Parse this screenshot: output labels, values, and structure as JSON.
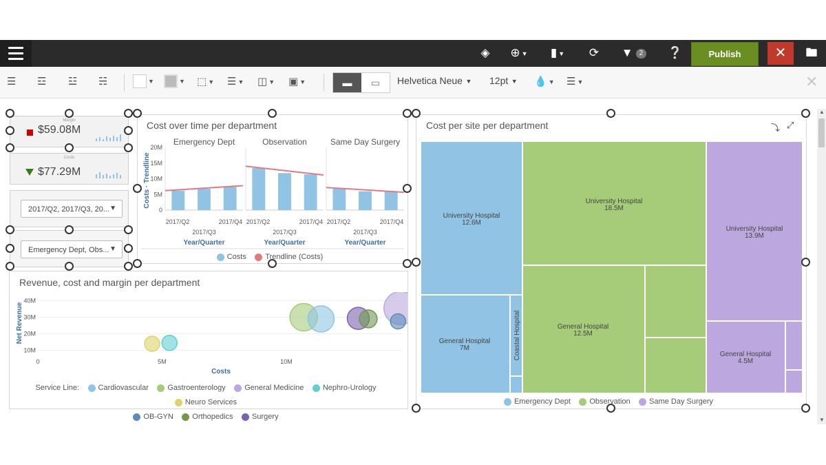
{
  "topbar": {
    "publish_label": "Publish",
    "close_label": "✕",
    "filter_count": "2"
  },
  "toolbar": {
    "font": "Helvetica Neue",
    "size": "12pt"
  },
  "kpis": [
    {
      "label": "Margin",
      "value": "$59.08M",
      "indicator_color": "#cc0000"
    },
    {
      "label": "Costs",
      "value": "$77.29M",
      "indicator_color": "#3a7a1a"
    }
  ],
  "filters": [
    {
      "value": "2017/Q2, 2017/Q3, 20..."
    },
    {
      "value": "Emergency Dept, Obs..."
    }
  ],
  "cost_over_time": {
    "title": "Cost over time per department",
    "ylabel": "Costs · Trendline",
    "xlabel": "Year/Quarter",
    "legend": [
      "Costs",
      "Trendline (Costs)"
    ],
    "chart_data": {
      "type": "bar",
      "categories": [
        "2017/Q2",
        "2017/Q3",
        "2017/Q4"
      ],
      "ylim": [
        0,
        20
      ],
      "yticks": [
        "20M",
        "15M",
        "10M",
        "5M",
        "0"
      ],
      "facets": [
        {
          "name": "Emergency Dept",
          "values": [
            6.2,
            6.8,
            7.4
          ],
          "trend": [
            6.2,
            7.8
          ]
        },
        {
          "name": "Observation",
          "values": [
            13.4,
            11.8,
            11.4
          ],
          "trend": [
            14.0,
            11.2
          ]
        },
        {
          "name": "Same Day Surgery",
          "values": [
            6.8,
            6.0,
            5.9
          ],
          "trend": [
            7.2,
            5.7
          ]
        }
      ],
      "colors": {
        "bar": "#90c3e4",
        "trend": "#e07b83"
      }
    }
  },
  "revenue_cost_margin": {
    "title": "Revenue, cost and margin per department",
    "xlabel": "Costs",
    "ylabel": "Net Revenue",
    "legend_title": "Service Line:",
    "legend": [
      {
        "name": "Cardiovascular",
        "color": "#8fc4e6"
      },
      {
        "name": "Gastroenterology",
        "color": "#a6cc7a"
      },
      {
        "name": "General Medicine",
        "color": "#bca8de"
      },
      {
        "name": "Nephro-Urology",
        "color": "#5fd0cf"
      },
      {
        "name": "Neuro Services",
        "color": "#dcd36a"
      },
      {
        "name": "OB-GYN",
        "color": "#5b8db8"
      },
      {
        "name": "Orthopedics",
        "color": "#6f9a4e"
      },
      {
        "name": "Surgery",
        "color": "#7d62b0"
      }
    ],
    "chart_data": {
      "type": "scatter",
      "xlim": [
        0,
        14
      ],
      "ylim": [
        9,
        41
      ],
      "xticks": [
        {
          "v": 0,
          "label": "0"
        },
        {
          "v": 5,
          "label": "5M"
        },
        {
          "v": 10,
          "label": "10M"
        }
      ],
      "yticks": [
        {
          "v": 10,
          "label": "10M"
        },
        {
          "v": 20,
          "label": "20M"
        },
        {
          "v": 30,
          "label": "30M"
        },
        {
          "v": 40,
          "label": "40M"
        }
      ],
      "points": [
        {
          "x": 4.6,
          "y": 14.0,
          "r": 11,
          "color": "#dcd36a"
        },
        {
          "x": 5.3,
          "y": 14.5,
          "r": 11,
          "color": "#5fd0cf"
        },
        {
          "x": 10.7,
          "y": 30.0,
          "r": 20,
          "color": "#a6cc7a"
        },
        {
          "x": 11.4,
          "y": 29.0,
          "r": 19,
          "color": "#8fc4e6"
        },
        {
          "x": 12.9,
          "y": 29.3,
          "r": 16,
          "color": "#7d62b0"
        },
        {
          "x": 13.3,
          "y": 29.0,
          "r": 13,
          "color": "#6f9a4e"
        },
        {
          "x": 14.6,
          "y": 35.5,
          "r": 24,
          "color": "#bca8de"
        },
        {
          "x": 14.5,
          "y": 27.5,
          "r": 11,
          "color": "#5b8db8"
        }
      ]
    }
  },
  "cost_per_site": {
    "title": "Cost per site per department",
    "legend": [
      {
        "name": "Emergency Dept",
        "color": "#8fc4e6"
      },
      {
        "name": "Observation",
        "color": "#a6cc7a"
      },
      {
        "name": "Same Day Surgery",
        "color": "#bca8de"
      }
    ],
    "chart_data": {
      "type": "treemap",
      "groups": [
        {
          "department": "Emergency Dept",
          "sites": [
            {
              "name": "University Hospital",
              "value": "12.6M"
            },
            {
              "name": "General Hospital",
              "value": "7M"
            },
            {
              "name": "Coastal Hospital",
              "value": ""
            }
          ]
        },
        {
          "department": "Observation",
          "sites": [
            {
              "name": "University Hospital",
              "value": "18.5M"
            },
            {
              "name": "General Hospital",
              "value": "12.5M"
            }
          ]
        },
        {
          "department": "Same Day Surgery",
          "sites": [
            {
              "name": "University Hospital",
              "value": "13.9M"
            },
            {
              "name": "General Hospital",
              "value": "4.5M"
            }
          ]
        }
      ]
    }
  }
}
